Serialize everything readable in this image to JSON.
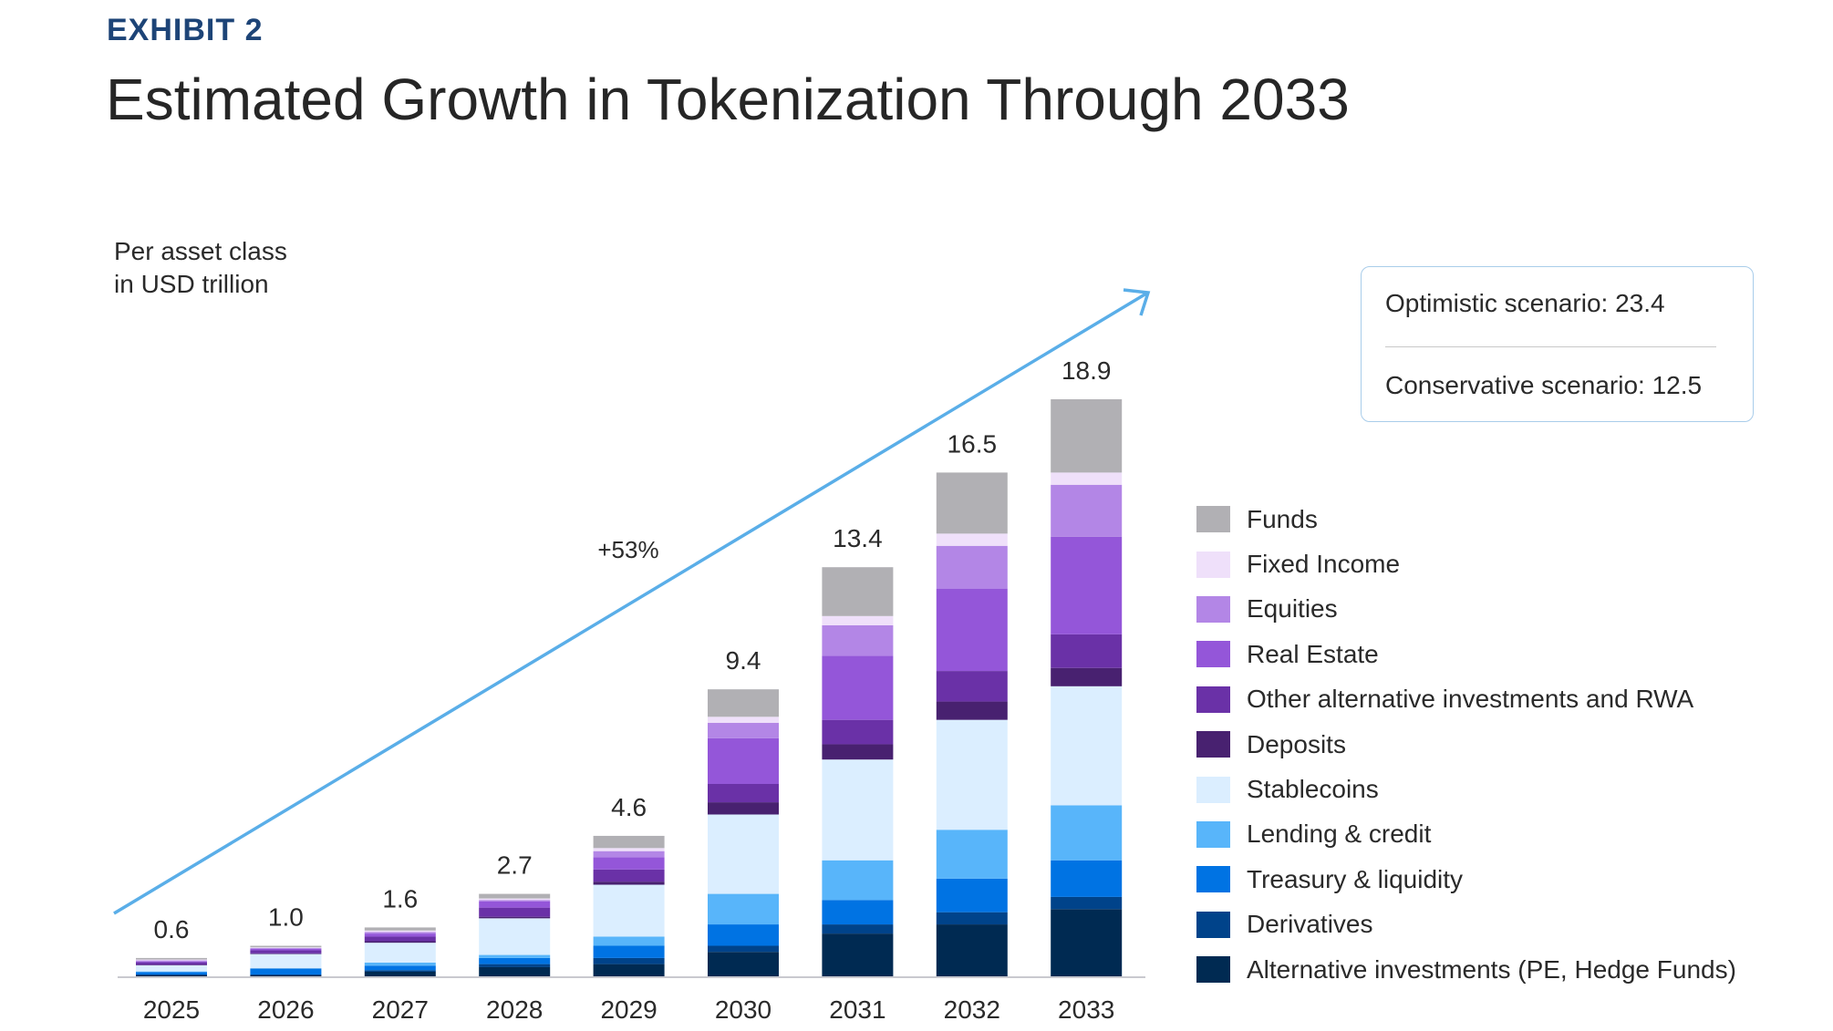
{
  "header": {
    "exhibit": "EXHIBIT 2",
    "title": "Estimated Growth in Tokenization Through 2033"
  },
  "unit_line1": "Per asset class",
  "unit_line2": "in USD trillion",
  "scenarios": {
    "optimistic": "Optimistic scenario: 23.4",
    "conservative": "Conservative scenario: 12.5"
  },
  "chart_data": {
    "type": "bar",
    "stacked": true,
    "title": "Estimated Growth in Tokenization Through 2033",
    "ylabel": "Per asset class in USD trillion",
    "categories": [
      "2025",
      "2026",
      "2027",
      "2028",
      "2029",
      "2030",
      "2031",
      "2032",
      "2033"
    ],
    "totals": [
      "0.6",
      "1.0",
      "1.6",
      "2.7",
      "4.6",
      "9.4",
      "13.4",
      "16.5",
      "18.9"
    ],
    "growth_annotation": "+53%",
    "ylim": [
      0,
      19
    ],
    "legend_position": "right",
    "series": [
      {
        "name": "Alternative investments (PE, Hedge Funds)",
        "color": "#002a52",
        "values": [
          0.03,
          0.03,
          0.15,
          0.3,
          0.4,
          0.8,
          1.4,
          1.7,
          2.2
        ]
      },
      {
        "name": "Derivatives",
        "color": "#00438a",
        "values": [
          0.03,
          0.03,
          0.05,
          0.1,
          0.2,
          0.2,
          0.3,
          0.4,
          0.4
        ]
      },
      {
        "name": "Treasury & liquidity",
        "color": "#0073e3",
        "values": [
          0.08,
          0.2,
          0.15,
          0.2,
          0.4,
          0.7,
          0.8,
          1.1,
          1.2
        ]
      },
      {
        "name": "Lending & credit",
        "color": "#58b5fa",
        "values": [
          0.02,
          0.0,
          0.1,
          0.1,
          0.3,
          1.0,
          1.3,
          1.6,
          1.8
        ]
      },
      {
        "name": "Stablecoins",
        "color": "#dbeeff",
        "values": [
          0.2,
          0.47,
          0.65,
          1.2,
          1.7,
          2.6,
          3.3,
          3.6,
          3.9
        ]
      },
      {
        "name": "Deposits",
        "color": "#482170",
        "values": [
          0.02,
          0.02,
          0.05,
          0.05,
          0.1,
          0.4,
          0.5,
          0.6,
          0.6
        ]
      },
      {
        "name": "Other alternative investments and RWA",
        "color": "#6a31a7",
        "values": [
          0.08,
          0.1,
          0.15,
          0.3,
          0.4,
          0.6,
          0.8,
          1.0,
          1.1
        ]
      },
      {
        "name": "Real Estate",
        "color": "#9456d9",
        "values": [
          0.02,
          0.05,
          0.1,
          0.2,
          0.4,
          1.5,
          2.1,
          2.7,
          3.2
        ]
      },
      {
        "name": "Equities",
        "color": "#b386e6",
        "values": [
          0.04,
          0.03,
          0.05,
          0.05,
          0.2,
          0.5,
          1.0,
          1.4,
          1.7
        ]
      },
      {
        "name": "Fixed Income",
        "color": "#efe0fa",
        "values": [
          0.03,
          0.02,
          0.05,
          0.05,
          0.1,
          0.2,
          0.3,
          0.4,
          0.4
        ]
      },
      {
        "name": "Funds",
        "color": "#b1b0b4",
        "values": [
          0.05,
          0.05,
          0.1,
          0.15,
          0.4,
          0.9,
          1.6,
          2.0,
          2.4
        ]
      }
    ]
  }
}
